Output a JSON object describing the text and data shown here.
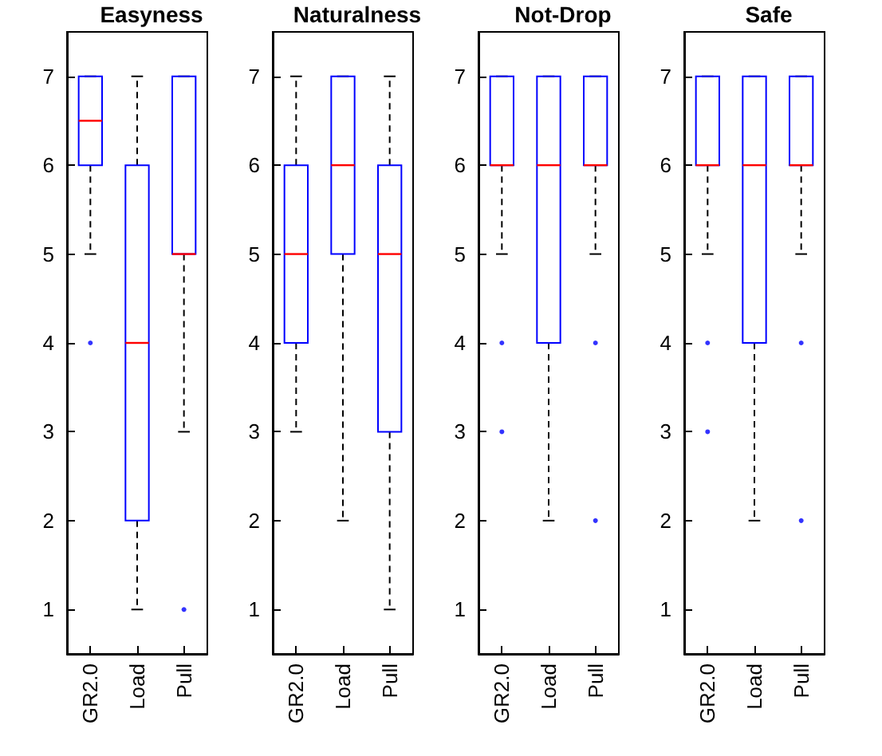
{
  "chart_data": [
    {
      "type": "box",
      "title": "Easyness",
      "categories": [
        "GR2.0",
        "Load",
        "Pull"
      ],
      "ylim": [
        0.5,
        7.5
      ],
      "yticks": [
        1,
        2,
        3,
        4,
        5,
        6,
        7
      ],
      "series": [
        {
          "color": "#0000ff",
          "boxes": [
            {
              "low": 5,
              "q1": 6,
              "median": 6.5,
              "q3": 7,
              "high": 7,
              "outliers": [
                4
              ]
            },
            {
              "low": 1,
              "q1": 2,
              "median": 4,
              "q3": 6,
              "high": 7
            },
            {
              "low": 3,
              "q1": 5,
              "median": 5,
              "q3": 7,
              "high": 7,
              "outliers": [
                1
              ]
            }
          ]
        }
      ]
    },
    {
      "type": "box",
      "title": "Naturalness",
      "categories": [
        "GR2.0",
        "Load",
        "Pull"
      ],
      "ylim": [
        0.5,
        7.5
      ],
      "yticks": [
        1,
        2,
        3,
        4,
        5,
        6,
        7
      ],
      "series": [
        {
          "color": "#0000ff",
          "boxes": [
            {
              "low": 3,
              "q1": 4,
              "median": 5,
              "q3": 6,
              "high": 7
            },
            {
              "low": 2,
              "q1": 5,
              "median": 6,
              "q3": 7,
              "high": 7
            },
            {
              "low": 1,
              "q1": 3,
              "median": 5,
              "q3": 6,
              "high": 7
            }
          ]
        }
      ]
    },
    {
      "type": "box",
      "title": "Not-Drop",
      "categories": [
        "GR2.0",
        "Load",
        "Pull"
      ],
      "ylim": [
        0.5,
        7.5
      ],
      "yticks": [
        1,
        2,
        3,
        4,
        5,
        6,
        7
      ],
      "series": [
        {
          "color": "#0000ff",
          "boxes": [
            {
              "low": 5,
              "q1": 6,
              "median": 6,
              "q3": 7,
              "high": 7,
              "outliers": [
                4,
                3
              ]
            },
            {
              "low": 2,
              "q1": 4,
              "median": 6,
              "q3": 7,
              "high": 7
            },
            {
              "low": 5,
              "q1": 6,
              "median": 6,
              "q3": 7,
              "high": 7,
              "outliers": [
                4,
                2
              ]
            }
          ]
        }
      ]
    },
    {
      "type": "box",
      "title": "Safe",
      "categories": [
        "GR2.0",
        "Load",
        "Pull"
      ],
      "ylim": [
        0.5,
        7.5
      ],
      "yticks": [
        1,
        2,
        3,
        4,
        5,
        6,
        7
      ],
      "series": [
        {
          "color": "#0000ff",
          "boxes": [
            {
              "low": 5,
              "q1": 6,
              "median": 6,
              "q3": 7,
              "high": 7,
              "outliers": [
                4,
                3
              ]
            },
            {
              "low": 2,
              "q1": 4,
              "median": 6,
              "q3": 7,
              "high": 7
            },
            {
              "low": 5,
              "q1": 6,
              "median": 6,
              "q3": 7,
              "high": 7,
              "outliers": [
                4,
                2
              ]
            }
          ]
        }
      ]
    }
  ]
}
